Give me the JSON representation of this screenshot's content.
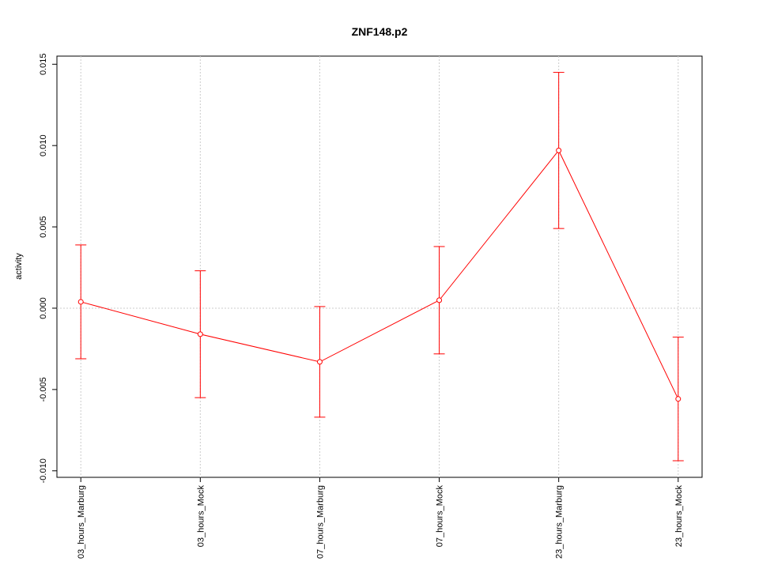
{
  "chart_data": {
    "type": "line",
    "title": "ZNF148.p2",
    "y_label": "activity",
    "categories": [
      "03_hours_Marburg",
      "03_hours_Mock",
      "07_hours_Marburg",
      "07_hours_Mock",
      "23_hours_Marburg",
      "23_hours_Mock"
    ],
    "series": [
      {
        "name": "activity",
        "color": "#ff0000",
        "values": [
          0.00039,
          -0.0016,
          -0.0033,
          0.00049,
          0.0097,
          -0.00558
        ],
        "errors": [
          0.0035,
          0.0039,
          0.0034,
          0.0033,
          0.0048,
          0.0038
        ]
      }
    ],
    "ylim": [
      -0.0104,
      0.0155
    ],
    "yticks": [
      {
        "value": -0.01,
        "label": "-0.010"
      },
      {
        "value": -0.005,
        "label": "-0.005"
      },
      {
        "value": 0,
        "label": "0.000"
      },
      {
        "value": 0.005,
        "label": "0.005"
      },
      {
        "value": 0.01,
        "label": "0.010"
      },
      {
        "value": 0.015,
        "label": "0.015"
      }
    ],
    "hline": 0,
    "grid": true
  }
}
